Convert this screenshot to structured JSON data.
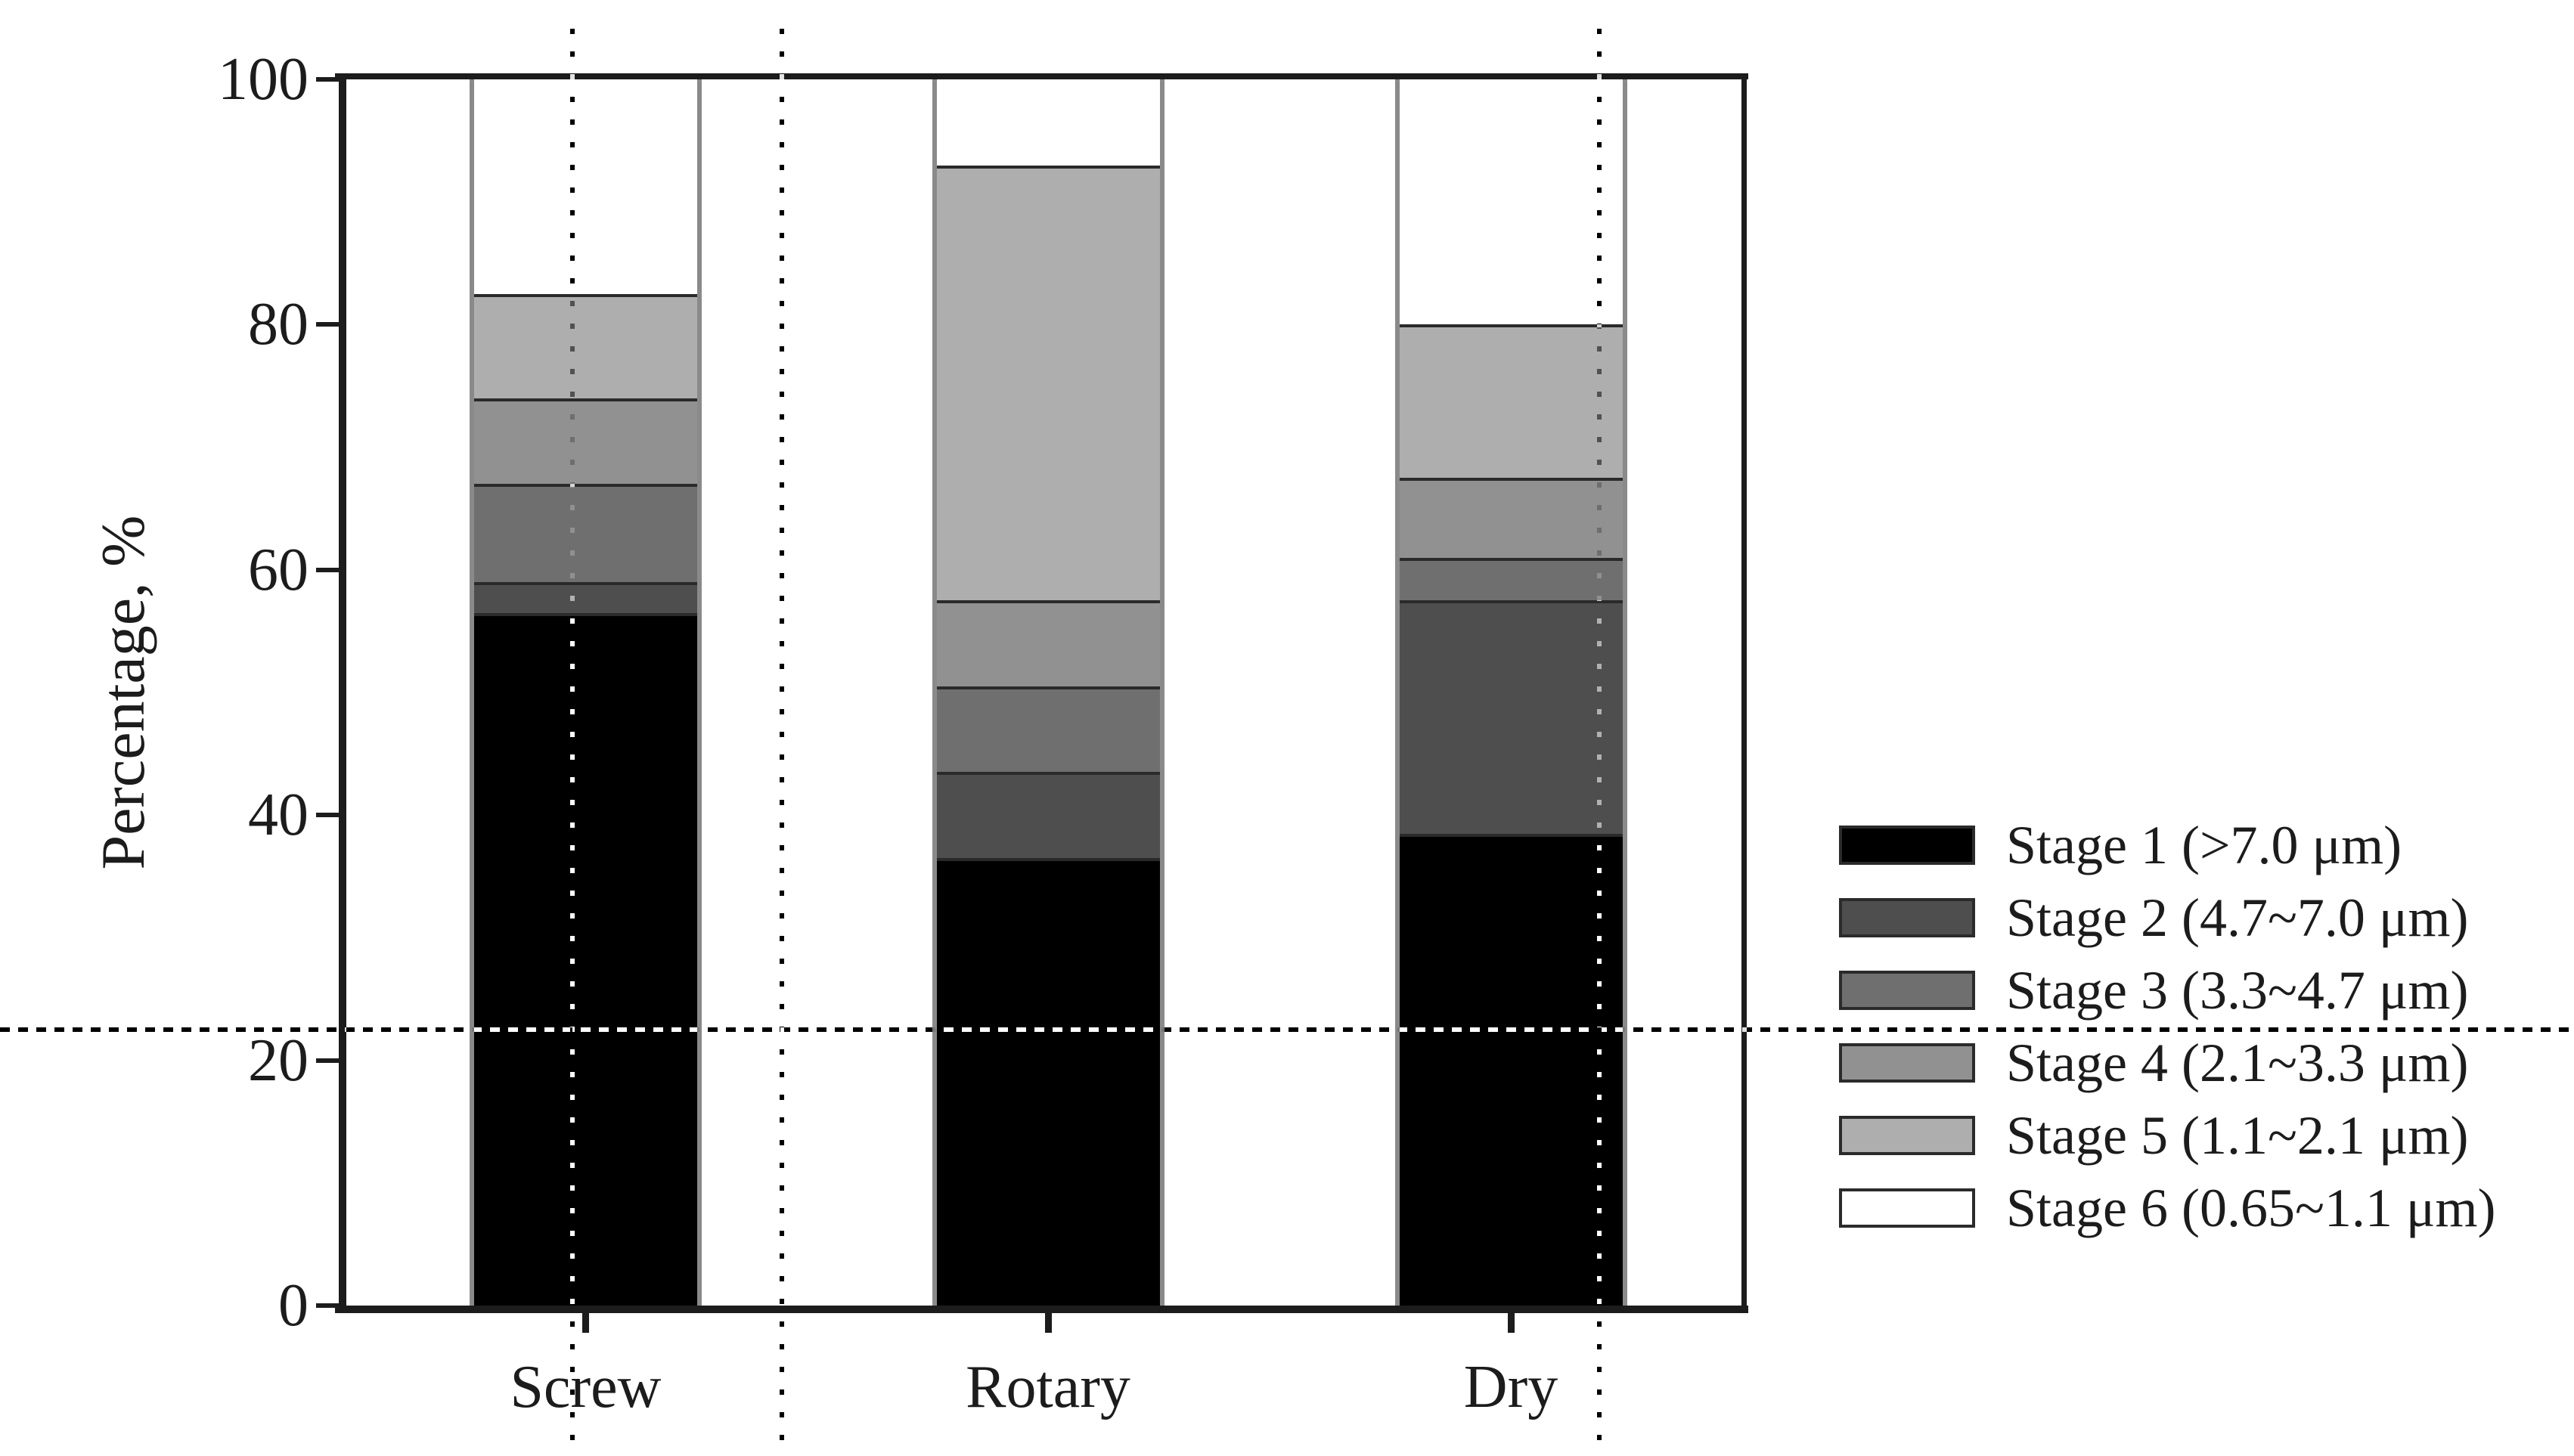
{
  "y_axis": {
    "title": "Percentage, %",
    "tick_labels": [
      "0",
      "20",
      "40",
      "60",
      "80",
      "100"
    ],
    "ticks": [
      0,
      20,
      40,
      60,
      80,
      100
    ],
    "min": 0,
    "max": 100
  },
  "x_axis": {
    "categories": [
      "Screw",
      "Rotary",
      "Dry"
    ]
  },
  "legend": {
    "position": "right",
    "entries": [
      "Stage 1 (>7.0 μm)",
      "Stage 2 (4.7~7.0 μm)",
      "Stage 3 (3.3~4.7 μm)",
      "Stage 4 (2.1~3.3 μm)",
      "Stage 5 (1.1~2.1 μm)",
      "Stage 6 (0.65~1.1 μm)"
    ]
  },
  "chart_data": {
    "type": "bar",
    "stacked": true,
    "categories": [
      "Screw",
      "Rotary",
      "Dry"
    ],
    "series": [
      {
        "name": "Stage 1 (>7.0 μm)",
        "color": "#000000",
        "values": [
          56.5,
          36.5,
          38.5
        ]
      },
      {
        "name": "Stage 2 (4.7~7.0 μm)",
        "color": "#4e4e4e",
        "values": [
          2.5,
          7,
          19
        ]
      },
      {
        "name": "Stage 3 (3.3~4.7 μm)",
        "color": "#6f6f6f",
        "values": [
          8,
          7,
          3.5
        ]
      },
      {
        "name": "Stage 4 (2.1~3.3 μm)",
        "color": "#919191",
        "values": [
          7,
          7,
          6.5
        ]
      },
      {
        "name": "Stage 5 (1.1~2.1 μm)",
        "color": "#aeaeae",
        "values": [
          8.5,
          35.5,
          12.5
        ]
      },
      {
        "name": "Stage 6 (0.65~1.1 μm)",
        "color": "#ffffff",
        "values": [
          17.5,
          7,
          20
        ]
      }
    ],
    "title": "",
    "xlabel": "",
    "ylabel": "Percentage, %",
    "ylim": [
      0,
      100
    ],
    "grid": false,
    "legend_position": "right"
  },
  "guide_lines": {
    "horizontal_value_pct": 22.5,
    "vertical_plot_fractions": [
      0.162,
      0.312,
      0.898
    ]
  },
  "colors": {
    "axis": "#1c1c1c",
    "bar_outline": "#8a8a8a",
    "segment_divider": "#2a2a2a",
    "background": "#ffffff"
  }
}
